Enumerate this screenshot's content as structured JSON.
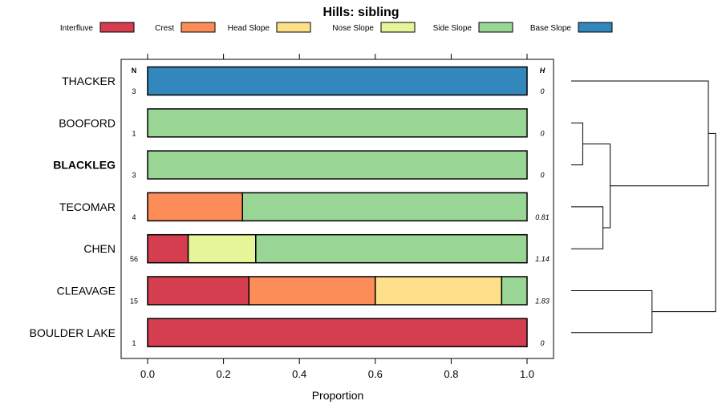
{
  "chart_data": {
    "type": "bar",
    "stacked": true,
    "orientation": "horizontal",
    "title": "Hills: sibling",
    "xlabel": "Proportion",
    "xlim": [
      0,
      1
    ],
    "xticks": [
      "0.0",
      "0.2",
      "0.4",
      "0.6",
      "0.8",
      "1.0"
    ],
    "n_header": "N",
    "h_header": "H",
    "legend_position": "top",
    "series": [
      {
        "name": "Interfluve",
        "color": "#d53e4f"
      },
      {
        "name": "Crest",
        "color": "#fc8d59"
      },
      {
        "name": "Head Slope",
        "color": "#fee08b"
      },
      {
        "name": "Nose Slope",
        "color": "#e6f598"
      },
      {
        "name": "Side Slope",
        "color": "#99d594"
      },
      {
        "name": "Base Slope",
        "color": "#3288bd"
      }
    ],
    "rows": [
      {
        "label": "THACKER",
        "bold": false,
        "n": "3",
        "h": "0",
        "values": [
          0,
          0,
          0,
          0,
          0,
          1
        ]
      },
      {
        "label": "BOOFORD",
        "bold": false,
        "n": "1",
        "h": "0",
        "values": [
          0,
          0,
          0,
          0,
          1,
          0
        ]
      },
      {
        "label": "BLACKLEG",
        "bold": true,
        "n": "3",
        "h": "0",
        "values": [
          0,
          0,
          0,
          0,
          1,
          0
        ]
      },
      {
        "label": "TECOMAR",
        "bold": false,
        "n": "4",
        "h": "0.81",
        "values": [
          0,
          0.25,
          0,
          0,
          0.75,
          0
        ]
      },
      {
        "label": "CHEN",
        "bold": false,
        "n": "56",
        "h": "1.14",
        "values": [
          0.107,
          0,
          0,
          0.178,
          0.715,
          0
        ]
      },
      {
        "label": "CLEAVAGE",
        "bold": false,
        "n": "15",
        "h": "1.83",
        "values": [
          0.267,
          0.333,
          0.333,
          0,
          0.067,
          0
        ]
      },
      {
        "label": "BOULDER LAKE",
        "bold": false,
        "n": "1",
        "h": "0",
        "values": [
          1,
          0,
          0,
          0,
          0,
          0
        ]
      }
    ],
    "dendrogram": {
      "type": "hierarchical-clustering",
      "merges": [
        {
          "a": 1,
          "b": 2,
          "height": 0.08
        },
        {
          "a": 3,
          "b": 4,
          "height": 0.22
        },
        {
          "a": "m0",
          "b": "m1",
          "height": 0.27
        },
        {
          "a": 0,
          "b": "m2",
          "height": 0.95
        },
        {
          "a": 5,
          "b": 6,
          "height": 0.56
        },
        {
          "a": "m3",
          "b": "m4",
          "height": 1.0
        }
      ]
    }
  }
}
